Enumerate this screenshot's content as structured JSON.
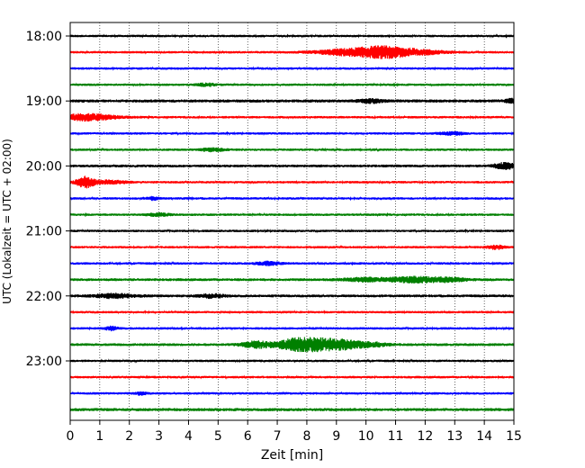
{
  "chart_data": {
    "type": "line",
    "title": "",
    "xlabel": "Zeit  [min]",
    "ylabel": "UTC (Lokalzeit = UTC + 02:00)",
    "xlim": [
      0,
      15
    ],
    "x_ticks": [
      "0",
      "1",
      "2",
      "3",
      "4",
      "5",
      "6",
      "7",
      "8",
      "9",
      "10",
      "11",
      "12",
      "13",
      "14",
      "15"
    ],
    "y_ticks": [
      "18:00",
      "19:00",
      "20:00",
      "21:00",
      "22:00",
      "23:00"
    ],
    "grid": "vertical dotted",
    "rows_per_hour": 4,
    "row_minutes": 15,
    "color_cycle": [
      "#000000",
      "#ff0000",
      "#0000ff",
      "#008000"
    ],
    "series": [
      {
        "row": 0,
        "start": "18:00",
        "color": "#000000",
        "noise": 0.7,
        "events": []
      },
      {
        "row": 1,
        "start": "18:15",
        "color": "#ff0000",
        "noise": 0.7,
        "events": [
          [
            9.3,
            1.0,
            1.6
          ],
          [
            10.5,
            0.8,
            2.6
          ],
          [
            11.6,
            1.0,
            1.5
          ]
        ]
      },
      {
        "row": 2,
        "start": "18:30",
        "color": "#0000ff",
        "noise": 0.7,
        "events": []
      },
      {
        "row": 3,
        "start": "18:45",
        "color": "#008000",
        "noise": 0.7,
        "events": [
          [
            4.6,
            0.3,
            0.8
          ]
        ]
      },
      {
        "row": 4,
        "start": "19:00",
        "color": "#000000",
        "noise": 0.9,
        "events": [
          [
            10.2,
            0.4,
            0.9
          ],
          [
            14.9,
            0.2,
            1.0
          ]
        ]
      },
      {
        "row": 5,
        "start": "19:15",
        "color": "#ff0000",
        "noise": 0.7,
        "events": [
          [
            0.6,
            0.9,
            1.9
          ]
        ]
      },
      {
        "row": 6,
        "start": "19:30",
        "color": "#0000ff",
        "noise": 0.7,
        "events": [
          [
            12.9,
            0.4,
            0.8
          ]
        ]
      },
      {
        "row": 7,
        "start": "19:45",
        "color": "#008000",
        "noise": 0.7,
        "events": [
          [
            4.8,
            0.4,
            0.9
          ]
        ]
      },
      {
        "row": 8,
        "start": "20:00",
        "color": "#000000",
        "noise": 0.8,
        "events": [
          [
            14.7,
            0.4,
            1.6
          ]
        ]
      },
      {
        "row": 9,
        "start": "20:15",
        "color": "#ff0000",
        "noise": 0.7,
        "events": [
          [
            0.5,
            0.3,
            3.0
          ],
          [
            1.3,
            0.6,
            1.0
          ]
        ]
      },
      {
        "row": 10,
        "start": "20:30",
        "color": "#0000ff",
        "noise": 0.7,
        "events": [
          [
            2.8,
            0.2,
            0.8
          ]
        ]
      },
      {
        "row": 11,
        "start": "20:45",
        "color": "#008000",
        "noise": 0.7,
        "events": [
          [
            3.0,
            0.4,
            0.7
          ]
        ]
      },
      {
        "row": 12,
        "start": "21:00",
        "color": "#000000",
        "noise": 0.7,
        "events": []
      },
      {
        "row": 13,
        "start": "21:15",
        "color": "#ff0000",
        "noise": 0.7,
        "events": [
          [
            14.4,
            0.3,
            1.0
          ]
        ]
      },
      {
        "row": 14,
        "start": "21:30",
        "color": "#0000ff",
        "noise": 0.7,
        "events": [
          [
            6.7,
            0.4,
            1.0
          ]
        ]
      },
      {
        "row": 15,
        "start": "21:45",
        "color": "#008000",
        "noise": 0.8,
        "events": [
          [
            10.0,
            0.8,
            1.0
          ],
          [
            11.6,
            0.8,
            1.5
          ],
          [
            12.8,
            0.6,
            1.0
          ]
        ]
      },
      {
        "row": 16,
        "start": "22:00",
        "color": "#000000",
        "noise": 0.8,
        "events": [
          [
            1.5,
            0.7,
            1.1
          ],
          [
            4.8,
            0.4,
            1.0
          ]
        ]
      },
      {
        "row": 17,
        "start": "22:15",
        "color": "#ff0000",
        "noise": 0.7,
        "events": []
      },
      {
        "row": 18,
        "start": "22:30",
        "color": "#0000ff",
        "noise": 0.7,
        "events": [
          [
            1.4,
            0.2,
            1.0
          ]
        ]
      },
      {
        "row": 19,
        "start": "22:45",
        "color": "#008000",
        "noise": 0.8,
        "events": [
          [
            6.3,
            0.5,
            1.8
          ],
          [
            7.5,
            0.6,
            2.4
          ],
          [
            8.4,
            0.8,
            3.2
          ],
          [
            9.4,
            0.6,
            1.8
          ],
          [
            10.3,
            0.5,
            1.0
          ]
        ]
      },
      {
        "row": 20,
        "start": "23:00",
        "color": "#000000",
        "noise": 0.7,
        "events": []
      },
      {
        "row": 21,
        "start": "23:15",
        "color": "#ff0000",
        "noise": 0.7,
        "events": []
      },
      {
        "row": 22,
        "start": "23:30",
        "color": "#0000ff",
        "noise": 0.7,
        "events": [
          [
            2.4,
            0.2,
            0.8
          ]
        ]
      },
      {
        "row": 23,
        "start": "23:45",
        "color": "#008000",
        "noise": 0.9,
        "events": []
      }
    ]
  }
}
